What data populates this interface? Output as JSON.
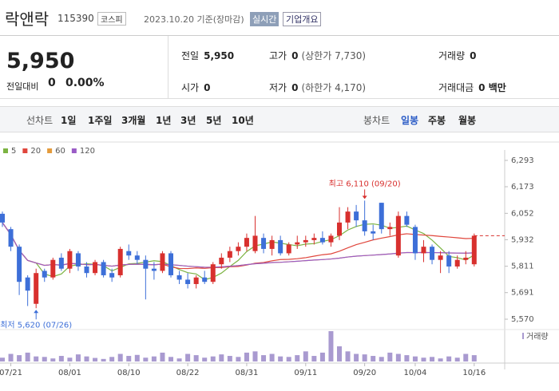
{
  "header": {
    "name": "락앤락",
    "code": "115390",
    "market": "코스피",
    "date": "2023.10.20 기준(장마감)",
    "realtime": "실시간",
    "company_info": "기업개요"
  },
  "quote": {
    "price": "5,950",
    "change_label": "전일대비",
    "change": "0",
    "change_rate": "0.00%"
  },
  "stats": [
    [
      {
        "label": "전일",
        "value": "5,950"
      },
      {
        "label": "고가",
        "value": "0",
        "note": "(상한가 7,730)"
      },
      {
        "label": "거래량",
        "value": "0"
      }
    ],
    [
      {
        "label": "시가",
        "value": "0"
      },
      {
        "label": "저가",
        "value": "0",
        "note": "(하한가 4,170)"
      },
      {
        "label": "거래대금",
        "value": "0 백만"
      }
    ]
  ],
  "tabs": {
    "line_label": "선차트",
    "line": [
      "1일",
      "1주일",
      "3개월",
      "1년",
      "3년",
      "5년",
      "10년"
    ],
    "candle_label": "봉차트",
    "candle": [
      "일봉",
      "주봉",
      "월봉"
    ],
    "active": "일봉"
  },
  "chart": {
    "type": "candlestick",
    "categories": [
      null,
      "07/21",
      null,
      null,
      null,
      null,
      null,
      null,
      "08/01",
      null,
      null,
      null,
      null,
      null,
      null,
      "08/10",
      null,
      null,
      null,
      null,
      null,
      null,
      "08/22",
      null,
      null,
      null,
      null,
      null,
      null,
      "08/31",
      null,
      null,
      null,
      null,
      null,
      null,
      "09/11",
      null,
      null,
      null,
      null,
      null,
      null,
      "09/20",
      null,
      null,
      null,
      null,
      null,
      "10/04",
      null,
      null,
      null,
      null,
      null,
      null,
      "10/16"
    ],
    "candles": {
      "up_color": "#d8302e",
      "down_color": "#3d6fd8",
      "open": [
        6050,
        5980,
        5900,
        5760,
        5640,
        5790,
        5760,
        5850,
        5800,
        5870,
        5810,
        5780,
        5830,
        5780,
        5770,
        5880,
        5860,
        5840,
        5800,
        5790,
        5870,
        5770,
        5750,
        5730,
        5760,
        5740,
        5820,
        5850,
        5880,
        5900,
        5880,
        5940,
        5890,
        5930,
        5870,
        5910,
        5920,
        5930,
        5940,
        5920,
        5950,
        6010,
        6060,
        6020,
        5970,
        6100,
        5980,
        5860,
        6040,
        5990,
        5870,
        5900,
        5840,
        5860,
        5810,
        5840,
        5820
      ],
      "high": [
        6060,
        5990,
        5910,
        5770,
        5800,
        5800,
        5850,
        5870,
        5890,
        5880,
        5830,
        5840,
        5840,
        5800,
        5900,
        5910,
        5880,
        5860,
        5830,
        5880,
        5880,
        5790,
        5780,
        5770,
        5790,
        5830,
        5870,
        5900,
        5920,
        5960,
        6040,
        5960,
        5950,
        5950,
        5920,
        5950,
        5950,
        5960,
        5970,
        5960,
        6080,
        6080,
        6090,
        6110,
        6000,
        6100,
        6010,
        6060,
        6060,
        6000,
        5930,
        5910,
        5880,
        5880,
        5860,
        5880,
        5960
      ],
      "low": [
        5990,
        5880,
        5680,
        5630,
        5620,
        5740,
        5750,
        5790,
        5780,
        5790,
        5760,
        5770,
        5760,
        5740,
        5760,
        5840,
        5820,
        5660,
        5750,
        5780,
        5760,
        5730,
        5710,
        5710,
        5730,
        5730,
        5800,
        5830,
        5860,
        5880,
        5870,
        5870,
        5860,
        5860,
        5860,
        5890,
        5900,
        5910,
        5910,
        5900,
        5930,
        5980,
        5990,
        5950,
        5930,
        5960,
        5950,
        5850,
        5990,
        5840,
        5830,
        5820,
        5780,
        5780,
        5800,
        5820,
        5810
      ],
      "close": [
        6010,
        5900,
        5740,
        5700,
        5780,
        5760,
        5840,
        5800,
        5880,
        5810,
        5780,
        5830,
        5770,
        5760,
        5890,
        5860,
        5840,
        5800,
        5790,
        5870,
        5770,
        5750,
        5730,
        5760,
        5740,
        5820,
        5850,
        5880,
        5900,
        5940,
        5950,
        5890,
        5930,
        5870,
        5910,
        5920,
        5930,
        5940,
        5920,
        5950,
        6010,
        6060,
        6020,
        5970,
        5960,
        5980,
        5990,
        6040,
        6000,
        5870,
        5900,
        5840,
        5860,
        5810,
        5840,
        5850,
        5950
      ]
    },
    "moving_averages": [
      {
        "name": "5",
        "color": "#7cb342"
      },
      {
        "name": "20",
        "color": "#e0463c"
      },
      {
        "name": "60",
        "color": "#e49b3c"
      },
      {
        "name": "120",
        "color": "#9a5cc6"
      }
    ],
    "volume": {
      "name": "거래량",
      "color": "#a99ad0",
      "values": [
        15,
        30,
        25,
        35,
        20,
        18,
        12,
        22,
        15,
        28,
        20,
        14,
        10,
        18,
        30,
        22,
        26,
        15,
        20,
        35,
        18,
        12,
        30,
        25,
        15,
        20,
        28,
        22,
        18,
        35,
        40,
        25,
        30,
        20,
        18,
        25,
        40,
        22,
        35,
        120,
        60,
        40,
        30,
        28,
        22,
        18,
        35,
        30,
        25,
        20,
        15,
        18,
        12,
        20,
        15,
        30,
        25
      ]
    },
    "ylim": [
      5541,
      6322
    ],
    "yticks": [
      {
        "value": 5570,
        "label": "5,570"
      },
      {
        "value": 5691,
        "label": "5,691"
      },
      {
        "value": 5811,
        "label": "5,811"
      },
      {
        "value": 5932,
        "label": "5,932"
      },
      {
        "value": 6052,
        "label": "6,052"
      },
      {
        "value": 6173,
        "label": "6,173"
      },
      {
        "value": 6293,
        "label": "6,293"
      }
    ],
    "annotations": [
      {
        "text": "최고 6,110 (09/20)",
        "value": 6110
      },
      {
        "text": "최저 5,620 (07/26)",
        "value": 5620
      }
    ]
  }
}
